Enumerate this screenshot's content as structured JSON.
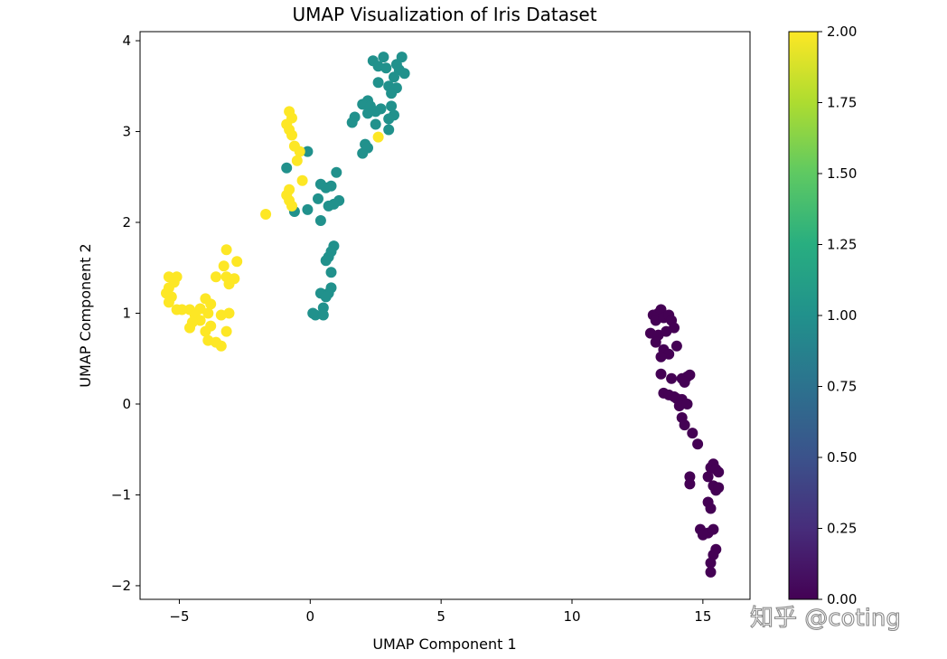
{
  "chart_data": {
    "type": "scatter",
    "title": "UMAP Visualization of Iris Dataset",
    "xlabel": "UMAP Component 1",
    "ylabel": "UMAP Component 2",
    "xlim": [
      -6.5,
      16.8
    ],
    "ylim": [
      -2.15,
      4.1
    ],
    "xticks": [
      -5,
      0,
      5,
      10,
      15
    ],
    "yticks": [
      -2,
      -1,
      0,
      1,
      2,
      3,
      4
    ],
    "xtick_labels": [
      "−5",
      "0",
      "5",
      "10",
      "15"
    ],
    "ytick_labels": [
      "−2",
      "−1",
      "0",
      "1",
      "2",
      "3",
      "4"
    ],
    "grid": false,
    "colormap": "viridis",
    "colorbar": {
      "range": [
        0,
        2
      ],
      "ticks": [
        0,
        0.25,
        0.5,
        0.75,
        1.0,
        1.25,
        1.5,
        1.75,
        2.0
      ],
      "tick_labels": [
        "0.00",
        "0.25",
        "0.50",
        "0.75",
        "1.00",
        "1.25",
        "1.50",
        "1.75",
        "2.00"
      ]
    },
    "colors": {
      "0": "#440154",
      "1": "#21918c",
      "2": "#fde725"
    },
    "series": [
      {
        "value": 0,
        "points": [
          [
            13.1,
            0.98
          ],
          [
            13.3,
            1.0
          ],
          [
            13.4,
            1.04
          ],
          [
            13.2,
            0.92
          ],
          [
            13.5,
            0.95
          ],
          [
            13.7,
            0.98
          ],
          [
            13.8,
            0.92
          ],
          [
            13.0,
            0.78
          ],
          [
            13.3,
            0.76
          ],
          [
            13.6,
            0.8
          ],
          [
            13.9,
            0.84
          ],
          [
            13.2,
            0.68
          ],
          [
            13.5,
            0.6
          ],
          [
            13.7,
            0.55
          ],
          [
            13.4,
            0.52
          ],
          [
            14.0,
            0.64
          ],
          [
            13.4,
            0.33
          ],
          [
            13.8,
            0.28
          ],
          [
            14.2,
            0.28
          ],
          [
            14.4,
            0.3
          ],
          [
            14.5,
            0.32
          ],
          [
            14.3,
            0.24
          ],
          [
            13.5,
            0.12
          ],
          [
            13.7,
            0.1
          ],
          [
            13.9,
            0.08
          ],
          [
            14.0,
            0.06
          ],
          [
            14.2,
            0.05
          ],
          [
            14.1,
            -0.02
          ],
          [
            14.4,
            0.0
          ],
          [
            14.2,
            -0.15
          ],
          [
            14.3,
            -0.23
          ],
          [
            14.6,
            -0.32
          ],
          [
            14.8,
            -0.44
          ],
          [
            14.5,
            -0.8
          ],
          [
            14.5,
            -0.88
          ],
          [
            15.3,
            -0.7
          ],
          [
            15.4,
            -0.66
          ],
          [
            15.5,
            -0.72
          ],
          [
            15.6,
            -0.75
          ],
          [
            15.2,
            -0.8
          ],
          [
            15.4,
            -0.9
          ],
          [
            15.5,
            -0.95
          ],
          [
            15.6,
            -0.92
          ],
          [
            15.2,
            -1.08
          ],
          [
            15.3,
            -1.15
          ],
          [
            14.9,
            -1.38
          ],
          [
            15.0,
            -1.44
          ],
          [
            15.2,
            -1.42
          ],
          [
            15.4,
            -1.38
          ],
          [
            15.5,
            -1.6
          ],
          [
            15.4,
            -1.66
          ],
          [
            15.3,
            -1.75
          ],
          [
            15.3,
            -1.85
          ]
        ]
      },
      {
        "value": 1,
        "points": [
          [
            2.8,
            3.82
          ],
          [
            3.5,
            3.82
          ],
          [
            2.4,
            3.78
          ],
          [
            2.6,
            3.72
          ],
          [
            2.9,
            3.7
          ],
          [
            3.3,
            3.74
          ],
          [
            3.4,
            3.68
          ],
          [
            3.6,
            3.64
          ],
          [
            3.2,
            3.6
          ],
          [
            2.6,
            3.54
          ],
          [
            3.0,
            3.5
          ],
          [
            3.3,
            3.48
          ],
          [
            3.1,
            3.42
          ],
          [
            2.2,
            3.34
          ],
          [
            2.0,
            3.3
          ],
          [
            2.3,
            3.28
          ],
          [
            2.5,
            3.22
          ],
          [
            2.2,
            3.2
          ],
          [
            2.7,
            3.25
          ],
          [
            3.1,
            3.28
          ],
          [
            3.2,
            3.18
          ],
          [
            3.0,
            3.14
          ],
          [
            1.7,
            3.16
          ],
          [
            1.6,
            3.1
          ],
          [
            2.5,
            3.08
          ],
          [
            3.0,
            3.02
          ],
          [
            2.1,
            2.86
          ],
          [
            2.2,
            2.82
          ],
          [
            2.0,
            2.76
          ],
          [
            -0.1,
            2.78
          ],
          [
            -0.9,
            2.6
          ],
          [
            1.0,
            2.55
          ],
          [
            0.4,
            2.42
          ],
          [
            0.8,
            2.4
          ],
          [
            0.6,
            2.38
          ],
          [
            1.1,
            2.24
          ],
          [
            0.9,
            2.2
          ],
          [
            0.3,
            2.26
          ],
          [
            0.7,
            2.18
          ],
          [
            -0.1,
            2.14
          ],
          [
            -0.6,
            2.12
          ],
          [
            0.4,
            2.02
          ],
          [
            0.9,
            1.74
          ],
          [
            0.8,
            1.68
          ],
          [
            0.7,
            1.62
          ],
          [
            0.6,
            1.58
          ],
          [
            0.8,
            1.45
          ],
          [
            0.8,
            1.28
          ],
          [
            0.7,
            1.22
          ],
          [
            0.4,
            1.22
          ],
          [
            0.6,
            1.18
          ],
          [
            0.5,
            1.06
          ],
          [
            0.2,
            0.98
          ],
          [
            0.5,
            0.98
          ],
          [
            0.1,
            1.0
          ]
        ]
      },
      {
        "value": 2,
        "points": [
          [
            -0.8,
            3.22
          ],
          [
            -0.7,
            3.15
          ],
          [
            -0.9,
            3.08
          ],
          [
            -0.8,
            3.02
          ],
          [
            -0.7,
            2.96
          ],
          [
            -0.6,
            2.84
          ],
          [
            -0.4,
            2.78
          ],
          [
            -0.5,
            2.68
          ],
          [
            2.6,
            2.94
          ],
          [
            -0.3,
            2.46
          ],
          [
            -0.8,
            2.36
          ],
          [
            -0.9,
            2.3
          ],
          [
            -0.8,
            2.24
          ],
          [
            -0.7,
            2.18
          ],
          [
            -1.7,
            2.09
          ],
          [
            -3.2,
            1.7
          ],
          [
            -2.8,
            1.57
          ],
          [
            -3.3,
            1.52
          ],
          [
            -3.6,
            1.4
          ],
          [
            -3.2,
            1.4
          ],
          [
            -2.9,
            1.38
          ],
          [
            -3.1,
            1.32
          ],
          [
            -5.4,
            1.4
          ],
          [
            -5.1,
            1.4
          ],
          [
            -5.2,
            1.34
          ],
          [
            -5.4,
            1.28
          ],
          [
            -5.5,
            1.22
          ],
          [
            -5.3,
            1.18
          ],
          [
            -5.4,
            1.12
          ],
          [
            -4.0,
            1.16
          ],
          [
            -3.8,
            1.1
          ],
          [
            -4.2,
            1.05
          ],
          [
            -4.9,
            1.04
          ],
          [
            -5.1,
            1.04
          ],
          [
            -4.6,
            1.04
          ],
          [
            -3.9,
            1.0
          ],
          [
            -3.1,
            1.0
          ],
          [
            -3.4,
            0.98
          ],
          [
            -4.4,
            0.98
          ],
          [
            -4.2,
            0.92
          ],
          [
            -4.5,
            0.9
          ],
          [
            -4.6,
            0.84
          ],
          [
            -3.8,
            0.86
          ],
          [
            -4.0,
            0.8
          ],
          [
            -3.9,
            0.7
          ],
          [
            -3.6,
            0.68
          ],
          [
            -3.4,
            0.64
          ],
          [
            -3.2,
            0.8
          ]
        ]
      }
    ]
  },
  "watermark": "知乎 @coting"
}
